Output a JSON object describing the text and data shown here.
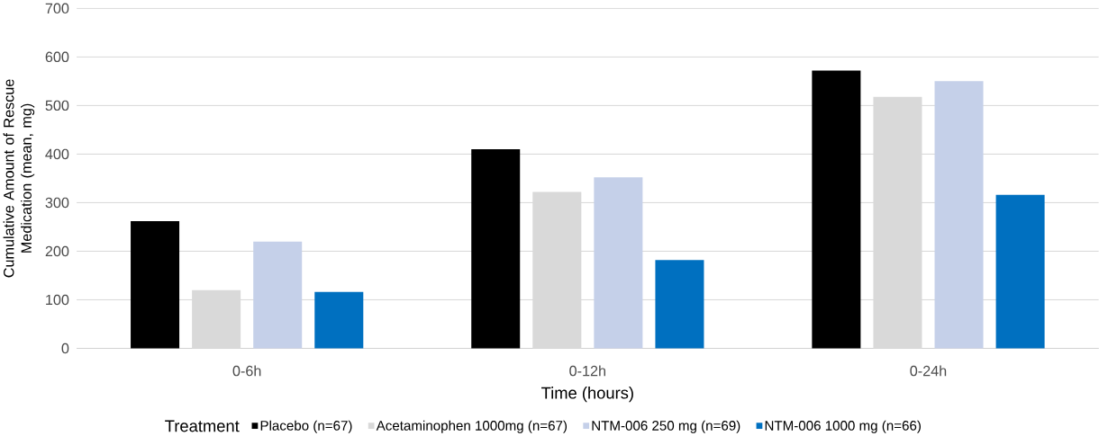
{
  "chart_data": {
    "type": "bar",
    "xlabel": "Time (hours)",
    "ylabel": "Cumulative Amount of Rescue Medication (mean, mg)",
    "legend_title": "Treatment",
    "categories": [
      "0-6h",
      "0-12h",
      "0-24h"
    ],
    "series": [
      {
        "name": "Placebo (n=67)",
        "color": "#000000",
        "values": [
          262,
          410,
          572
        ]
      },
      {
        "name": "Acetaminophen 1000mg (n=67)",
        "color": "#d9d9d9",
        "values": [
          120,
          322,
          518
        ]
      },
      {
        "name": "NTM-006 250 mg (n=69)",
        "color": "#c5d0e9",
        "values": [
          220,
          352,
          550
        ]
      },
      {
        "name": "NTM-006 1000 mg (n=66)",
        "color": "#0070c0",
        "values": [
          116,
          182,
          316
        ]
      }
    ],
    "ylim": [
      0,
      700
    ],
    "yticks": [
      0,
      100,
      200,
      300,
      400,
      500,
      600,
      700
    ],
    "grid": "y",
    "legend": "bottom"
  }
}
